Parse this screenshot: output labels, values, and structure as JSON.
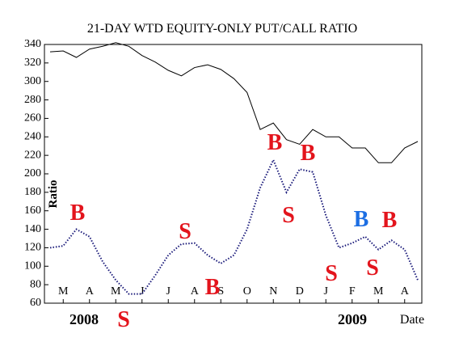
{
  "chart_data": {
    "type": "line",
    "title": "21-DAY WTD EQUITY-ONLY PUT/CALL RATIO",
    "xlabel": "Date",
    "ylabel": "Ratio",
    "period_labels": [
      "2008",
      "2009"
    ],
    "categories": [
      null,
      "M",
      null,
      "A",
      null,
      "M",
      null,
      "J",
      null,
      "J",
      null,
      "A",
      null,
      "S",
      null,
      "O",
      null,
      "N",
      null,
      "D",
      null,
      "J",
      null,
      "F",
      null,
      "M",
      null,
      "A",
      null
    ],
    "series": [
      {
        "color": "#000000",
        "style": "solid",
        "values": [
          332,
          333,
          326,
          335,
          338,
          342,
          338,
          328,
          321,
          312,
          306,
          315,
          318,
          313,
          303,
          288,
          248,
          255,
          237,
          232,
          248,
          240,
          240,
          228,
          228,
          212,
          212,
          228,
          235
        ]
      },
      {
        "color": "#1a1a7a",
        "style": "dotted",
        "values": [
          120,
          122,
          140,
          132,
          105,
          85,
          70,
          70,
          90,
          112,
          124,
          125,
          112,
          103,
          112,
          140,
          185,
          215,
          180,
          205,
          202,
          155,
          120,
          125,
          132,
          118,
          128,
          118,
          85
        ]
      }
    ],
    "ylim": [
      60,
      340
    ],
    "yticks": [
      60,
      80,
      100,
      120,
      140,
      160,
      180,
      200,
      220,
      240,
      260,
      280,
      300,
      320,
      340
    ],
    "annotations": [
      {
        "text": "B",
        "color": "#e3141c"
      },
      {
        "text": "S",
        "color": "#e3141c"
      },
      {
        "text": "B",
        "color": "#e3141c"
      },
      {
        "text": "S",
        "color": "#e3141c"
      },
      {
        "text": "B",
        "color": "#e3141c"
      },
      {
        "text": "S",
        "color": "#e3141c"
      },
      {
        "text": "B",
        "color": "#e3141c"
      },
      {
        "text": "S",
        "color": "#e3141c"
      },
      {
        "text": "B",
        "color": "#1c6ee3"
      },
      {
        "text": "S",
        "color": "#e3141c"
      },
      {
        "text": "B",
        "color": "#e3141c"
      }
    ]
  }
}
